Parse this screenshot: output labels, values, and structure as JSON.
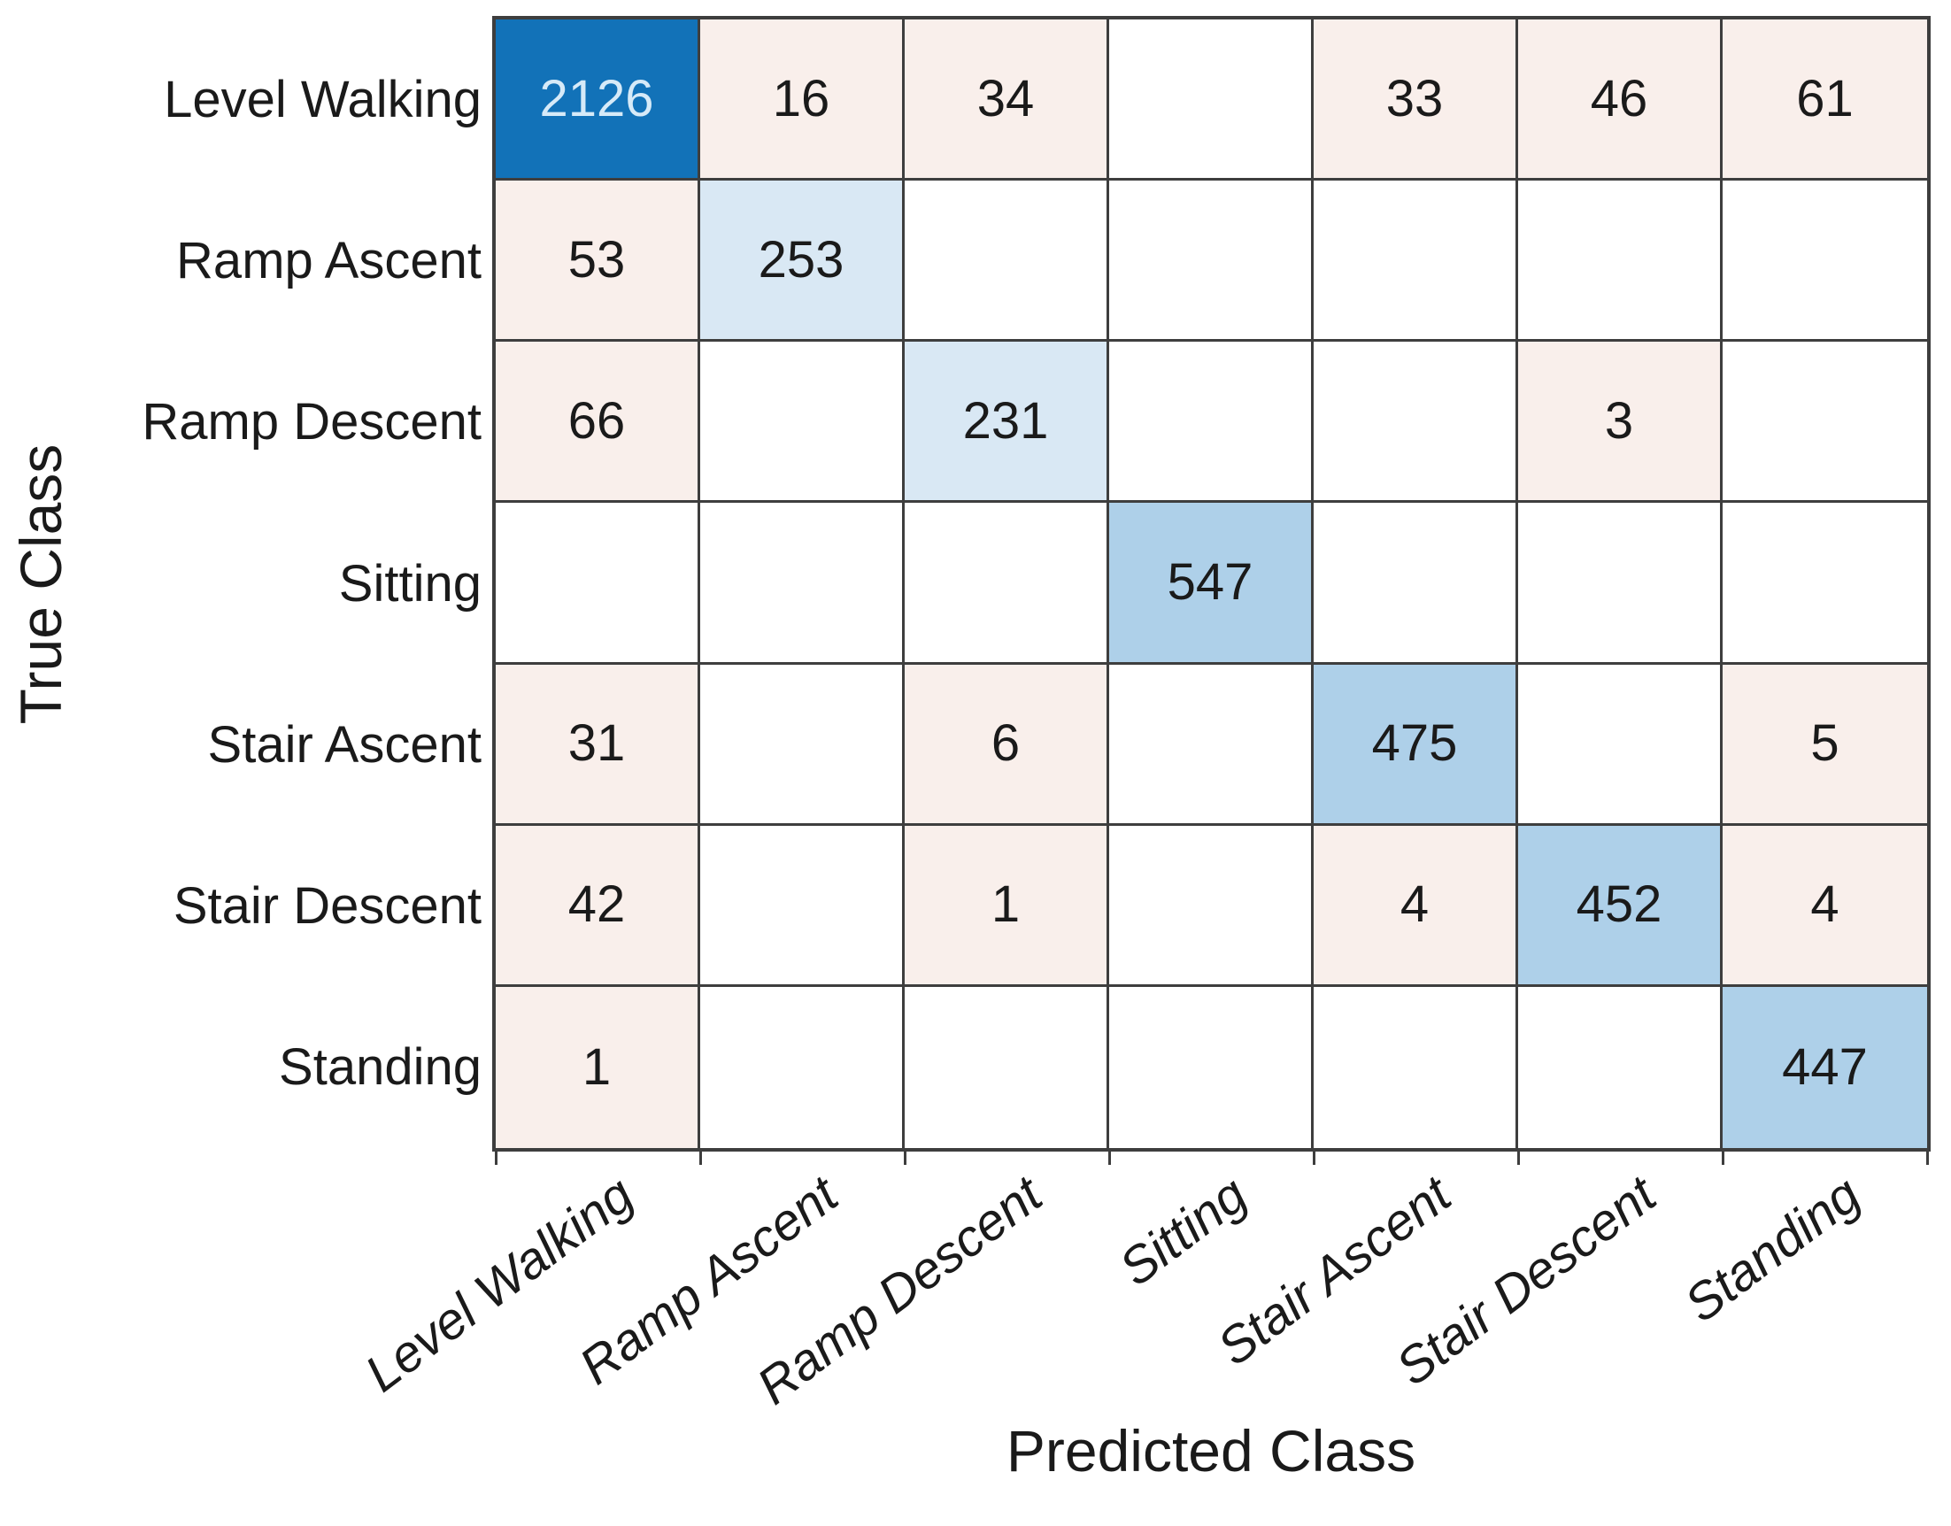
{
  "chart_data": {
    "type": "heatmap",
    "subtype": "confusion-matrix",
    "title": "",
    "xlabel": "Predicted Class",
    "ylabel": "True Class",
    "classes": [
      "Level Walking",
      "Ramp Ascent",
      "Ramp Descent",
      "Sitting",
      "Stair Ascent",
      "Stair Descent",
      "Standing"
    ],
    "matrix": [
      [
        2126,
        16,
        34,
        null,
        33,
        46,
        61
      ],
      [
        53,
        253,
        null,
        null,
        null,
        null,
        null
      ],
      [
        66,
        null,
        231,
        null,
        null,
        3,
        null
      ],
      [
        null,
        null,
        null,
        547,
        null,
        null,
        null
      ],
      [
        31,
        null,
        6,
        null,
        475,
        null,
        5
      ],
      [
        42,
        null,
        1,
        null,
        4,
        452,
        4
      ],
      [
        1,
        null,
        null,
        null,
        null,
        null,
        447
      ]
    ],
    "colors": {
      "diagonal_fill_by_row": [
        "#1272b8",
        "#d9e8f4",
        "#d9e8f4",
        "#aed0e9",
        "#aed0e9",
        "#aed0e9",
        "#aed0e9"
      ],
      "diagonal_text_by_row": [
        "#d6eaf8",
        "#1a1a1a",
        "#1a1a1a",
        "#1a1a1a",
        "#1a1a1a",
        "#1a1a1a",
        "#1a1a1a"
      ],
      "offdiagonal_fill": "#f9efeb",
      "empty_fill": "#ffffff",
      "grid_line": "#3e3e3e",
      "text": "#1a1a1a"
    },
    "layout": {
      "x_tick_label_rotation_deg": -37,
      "x_tick_labels_italic": true,
      "grid": "on",
      "legend": "none"
    }
  }
}
